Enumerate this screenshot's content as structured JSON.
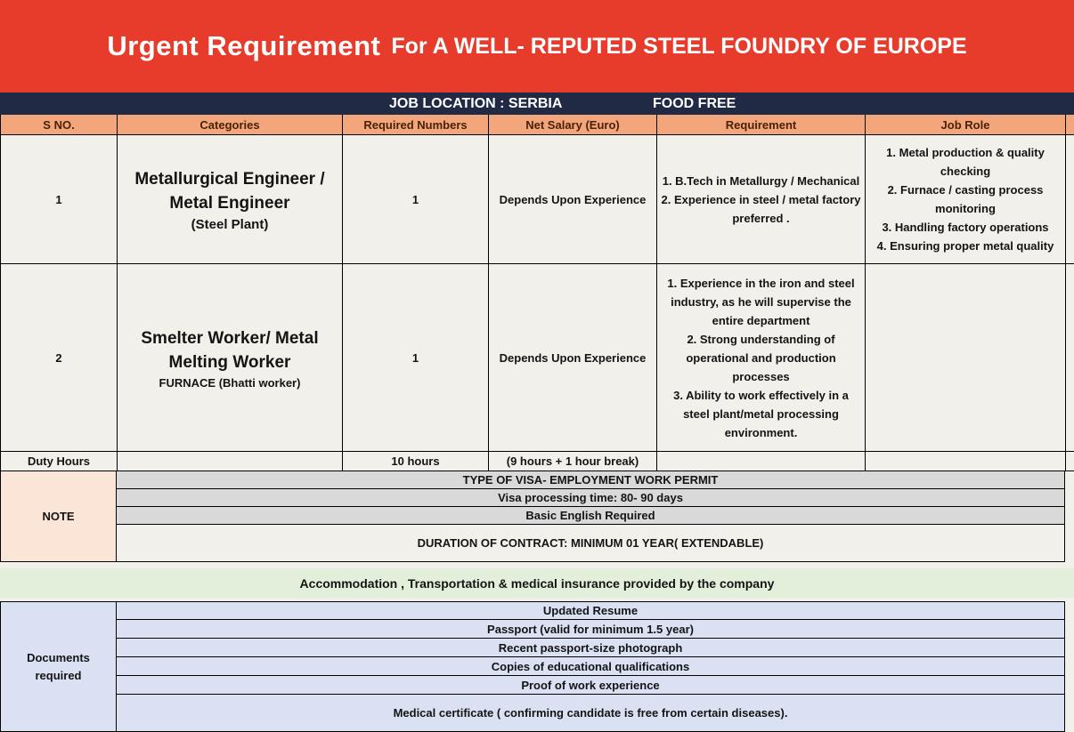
{
  "banner": {
    "title_emphasis": "Urgent Requirement",
    "title_rest": "For A WELL- REPUTED STEEL FOUNDRY OF EUROPE"
  },
  "location_bar": {
    "job_location": "JOB LOCATION : SERBIA",
    "food_free": "FOOD FREE"
  },
  "table": {
    "headers": {
      "sno": "S NO.",
      "categories": "Categories",
      "required_numbers": "Required Numbers",
      "net_salary": "Net Salary (Euro)",
      "requirement": "Requirement",
      "job_role": "Job Role"
    },
    "rows": [
      {
        "sno": "1",
        "category_title": "Metallurgical Engineer / Metal Engineer",
        "category_sub": "(Steel Plant)",
        "required": "1",
        "salary": "Depends Upon Experience",
        "requirement": "1.  B.Tech in Metallurgy / Mechanical\n2. Experience in steel / metal factory preferred .",
        "job_role": "1. Metal production & quality checking\n2. Furnace / casting process monitoring\n3. Handling factory operations\n4. Ensuring proper metal quality"
      },
      {
        "sno": "2",
        "category_title": "Smelter Worker/ Metal Melting Worker",
        "category_sub": "FURNACE (Bhatti worker)",
        "required": "1",
        "salary": "Depends Upon Experience",
        "requirement": "1. Experience in the iron and steel industry, as he will supervise the entire department\n2. Strong understanding of operational and production processes\n3. Ability to work effectively in a steel plant/metal processing environment.",
        "job_role": ""
      }
    ],
    "duty_hours_row": {
      "label": "Duty Hours",
      "hours": "10 hours",
      "break_info": "(9 hours + 1 hour break)"
    }
  },
  "note": {
    "label": "NOTE",
    "items": [
      "TYPE OF VISA- EMPLOYMENT WORK PERMIT",
      "Visa processing time: 80- 90 days",
      "Basic English Required",
      "DURATION OF CONTRACT: MINIMUM 01 YEAR( EXTENDABLE)"
    ]
  },
  "benefits_note": "Accommodation , Transportation & medical insurance provided by the company",
  "documents": {
    "label": "Documents required",
    "items": [
      "Updated Resume",
      "Passport (valid for minimum  1.5 year)",
      "Recent passport-size photograph",
      "Copies of educational qualifications",
      "Proof  of work experience",
      "Medical certificate ( confirming candidate is free from certain diseases)."
    ]
  },
  "colors": {
    "banner_red": "#E73B2B",
    "navy": "#212A45",
    "header_salmon": "#F3A67C",
    "header_text": "#4A2007",
    "page_bg": "#F2F0EA",
    "note_peach": "#FBE5D6",
    "gray_row": "#D9D9D9",
    "green_row": "#E2EFDA",
    "lavender": "#D9E1F2"
  }
}
